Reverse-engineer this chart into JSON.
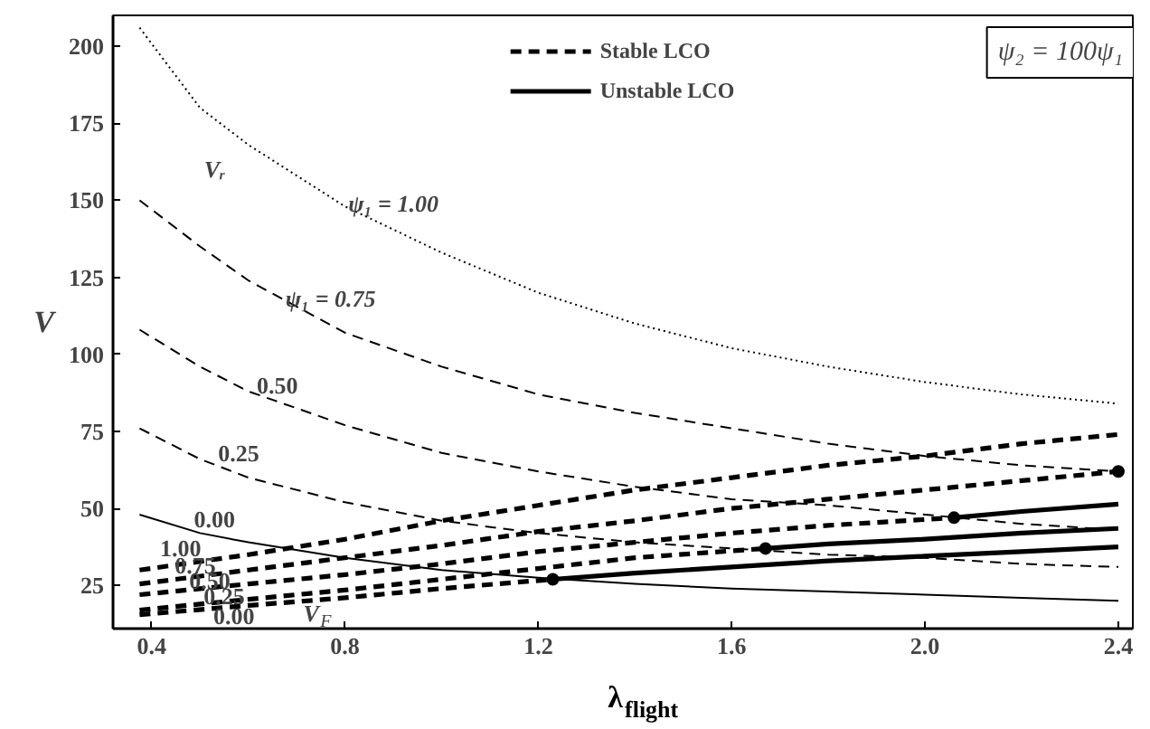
{
  "chart_data": {
    "type": "line",
    "xlabel": "λ$_{flight}$",
    "ylabel": "V",
    "xlim": [
      0.32,
      2.43
    ],
    "ylim": [
      11,
      210
    ],
    "xticks": [
      0.4,
      0.8,
      1.2,
      1.6,
      {
        "value": 2,
        "label": "2.0"
      },
      2.4
    ],
    "yticks": [
      25,
      50,
      75,
      100,
      125,
      150,
      175,
      200
    ],
    "grid": false,
    "legend": "top",
    "marker": "none",
    "series": [
      {
        "color": "#000000",
        "line_style": "dotted",
        "x": [
          0.375,
          0.5,
          0.6,
          0.8,
          1.0,
          1.2,
          1.4,
          1.6,
          1.8,
          2.0,
          2.2,
          2.4
        ],
        "values": [
          206,
          180,
          168,
          148,
          133,
          120,
          110,
          102,
          96,
          91,
          87,
          84
        ]
      },
      {
        "color": "#000000",
        "line_style": "dashed",
        "x": [
          0.375,
          0.5,
          0.6,
          0.8,
          1.0,
          1.2,
          1.4,
          1.6,
          1.8,
          2.0,
          2.2,
          2.4
        ],
        "values": [
          150,
          135,
          124,
          107,
          96,
          87,
          81,
          76,
          71,
          67,
          64,
          62
        ]
      },
      {
        "color": "#000000",
        "line_style": "dashed",
        "x": [
          0.375,
          0.5,
          0.6,
          0.8,
          1.0,
          1.2,
          1.4,
          1.6,
          1.8,
          2.0,
          2.2,
          2.4
        ],
        "values": [
          108,
          96,
          88,
          77,
          68,
          62,
          57,
          53,
          51,
          48,
          45,
          43
        ]
      },
      {
        "color": "#000000",
        "line_style": "dashed",
        "x": [
          0.375,
          0.5,
          0.6,
          0.8,
          1.0,
          1.2,
          1.4,
          1.6,
          1.8,
          2.0,
          2.2,
          2.4
        ],
        "values": [
          76,
          66,
          60,
          52,
          46,
          42,
          39,
          37,
          35,
          34,
          32,
          31
        ]
      },
      {
        "color": "#000000",
        "line_style": "solid",
        "x": [
          0.375,
          0.5,
          0.6,
          0.8,
          1.0,
          1.2,
          1.4,
          1.6,
          1.8,
          2.0,
          2.2,
          2.4
        ],
        "values": [
          48,
          42,
          39,
          34,
          30,
          27.5,
          25.5,
          24,
          23,
          22,
          21,
          20
        ]
      },
      {
        "name": "Stable LCO",
        "color": "#000000",
        "line_style": "dashed",
        "x": [
          0.375,
          0.6,
          0.8,
          1.0,
          1.2,
          1.4,
          1.6,
          1.8,
          2.0,
          2.2,
          2.4
        ],
        "values": [
          30,
          35,
          40,
          46,
          51,
          56,
          60,
          64,
          67,
          71,
          74
        ]
      },
      {
        "color": "#000000",
        "line_style": "dashed",
        "x": [
          0.375,
          0.6,
          0.8,
          1.0,
          1.2,
          1.4,
          1.6,
          1.8,
          2.0,
          2.2,
          2.4
        ],
        "values": [
          25.5,
          30,
          34,
          38,
          42.5,
          46,
          50,
          53,
          56,
          59,
          62
        ]
      },
      {
        "color": "#000000",
        "line_style": "dashed",
        "x": [
          0.375,
          0.6,
          0.8,
          1.0,
          1.2,
          1.4,
          1.6,
          1.8,
          2.06
        ],
        "values": [
          22,
          25.5,
          28.5,
          32,
          36,
          39,
          42,
          44.5,
          47
        ]
      },
      {
        "color": "#000000",
        "line_style": "dashed",
        "x": [
          0.375,
          0.6,
          0.8,
          1.0,
          1.2,
          1.4,
          1.67
        ],
        "values": [
          17,
          20.5,
          23.5,
          27,
          30.5,
          34,
          37
        ]
      },
      {
        "color": "#000000",
        "line_style": "dashed",
        "x": [
          0.375,
          0.6,
          0.8,
          1.0,
          1.23
        ],
        "values": [
          15.5,
          18.5,
          21,
          24,
          27
        ]
      },
      {
        "name": "Unstable LCO",
        "color": "#000000",
        "line_style": "solid",
        "x": [
          2.06,
          2.2,
          2.4
        ],
        "values": [
          47,
          49,
          51.4
        ]
      },
      {
        "color": "#000000",
        "line_style": "solid",
        "x": [
          1.67,
          1.8,
          2.0,
          2.2,
          2.4
        ],
        "values": [
          37,
          38.5,
          40,
          42,
          43.5
        ]
      },
      {
        "color": "#000000",
        "line_style": "solid",
        "x": [
          1.23,
          1.4,
          1.6,
          1.8,
          2.0,
          2.2,
          2.4
        ],
        "values": [
          27,
          29,
          31,
          33,
          34.5,
          36,
          37.5
        ]
      },
      {
        "type": "scatter",
        "marker": "circle",
        "color": "#000000",
        "x": [
          1.23,
          1.67,
          2.06,
          2.4
        ],
        "values": [
          27,
          37,
          47,
          62
        ]
      }
    ],
    "annotations": [
      "ψ₂ = 100ψ₁",
      "Vᵣ",
      "ψ₁ = 1.00",
      "ψ₁ = 0.75",
      "0.50",
      "0.25",
      "0.00",
      "1.00",
      "0.75",
      "0.50",
      "0.25",
      "0.00",
      "V$_{F}$"
    ]
  }
}
